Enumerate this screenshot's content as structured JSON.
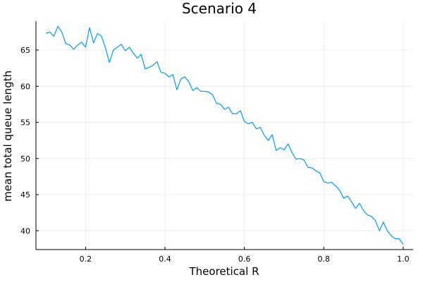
{
  "chart_data": {
    "type": "line",
    "title": "Scenario 4",
    "xlabel": "Theoretical R",
    "ylabel": "mean total queue length",
    "xlim": [
      0.075,
      1.025
    ],
    "ylim": [
      37.4,
      69.0
    ],
    "xticks": [
      0.2,
      0.4,
      0.6,
      0.8,
      1.0
    ],
    "xtick_labels": [
      "0.2",
      "0.4",
      "0.6",
      "0.8",
      "1.0"
    ],
    "yticks": [
      40,
      45,
      50,
      55,
      60,
      65
    ],
    "ytick_labels": [
      "40",
      "45",
      "50",
      "55",
      "60",
      "65"
    ],
    "grid": true,
    "legend": "none",
    "line_color": "#009AFA",
    "series": [
      {
        "x": [
          0.1,
          0.11,
          0.12,
          0.13,
          0.14,
          0.15,
          0.16,
          0.17,
          0.18,
          0.19,
          0.2,
          0.21,
          0.22,
          0.23,
          0.24,
          0.25,
          0.26,
          0.27,
          0.28,
          0.29,
          0.3,
          0.31,
          0.32,
          0.33,
          0.34,
          0.35,
          0.36,
          0.37,
          0.38,
          0.39,
          0.4,
          0.41,
          0.42,
          0.43,
          0.44,
          0.45,
          0.46,
          0.47,
          0.48,
          0.49,
          0.5,
          0.51,
          0.52,
          0.53,
          0.54,
          0.55,
          0.56,
          0.57,
          0.58,
          0.59,
          0.6,
          0.61,
          0.62,
          0.63,
          0.64,
          0.65,
          0.66,
          0.67,
          0.68,
          0.69,
          0.7,
          0.71,
          0.72,
          0.73,
          0.74,
          0.75,
          0.76,
          0.77,
          0.78,
          0.79,
          0.8,
          0.81,
          0.82,
          0.83,
          0.84,
          0.85,
          0.86,
          0.87,
          0.88,
          0.89,
          0.9,
          0.91,
          0.92,
          0.93,
          0.94,
          0.95,
          0.96,
          0.97,
          0.98,
          0.99,
          1.0
        ],
        "values": [
          67.3,
          67.5,
          66.9,
          68.3,
          67.5,
          65.9,
          65.7,
          65.1,
          65.7,
          66.1,
          65.4,
          68.1,
          66.0,
          67.3,
          66.9,
          65.3,
          63.3,
          65.0,
          65.4,
          65.8,
          64.9,
          65.4,
          64.6,
          63.9,
          64.4,
          62.4,
          62.6,
          62.9,
          63.4,
          61.9,
          61.8,
          61.3,
          61.6,
          59.5,
          61.0,
          61.3,
          60.6,
          59.4,
          59.8,
          59.3,
          59.3,
          59.2,
          58.8,
          57.6,
          57.5,
          56.8,
          57.1,
          56.2,
          56.2,
          56.6,
          55.1,
          54.8,
          55.0,
          54.1,
          54.3,
          53.2,
          52.5,
          53.3,
          51.1,
          51.5,
          51.2,
          52.0,
          50.8,
          49.9,
          50.0,
          49.8,
          48.8,
          48.7,
          48.3,
          48.0,
          46.8,
          46.6,
          46.7,
          46.2,
          45.6,
          44.5,
          44.8,
          44.0,
          43.1,
          43.8,
          42.8,
          42.2,
          42.0,
          41.4,
          40.0,
          41.2,
          40.0,
          39.3,
          38.9,
          38.9,
          38.1
        ]
      }
    ]
  }
}
